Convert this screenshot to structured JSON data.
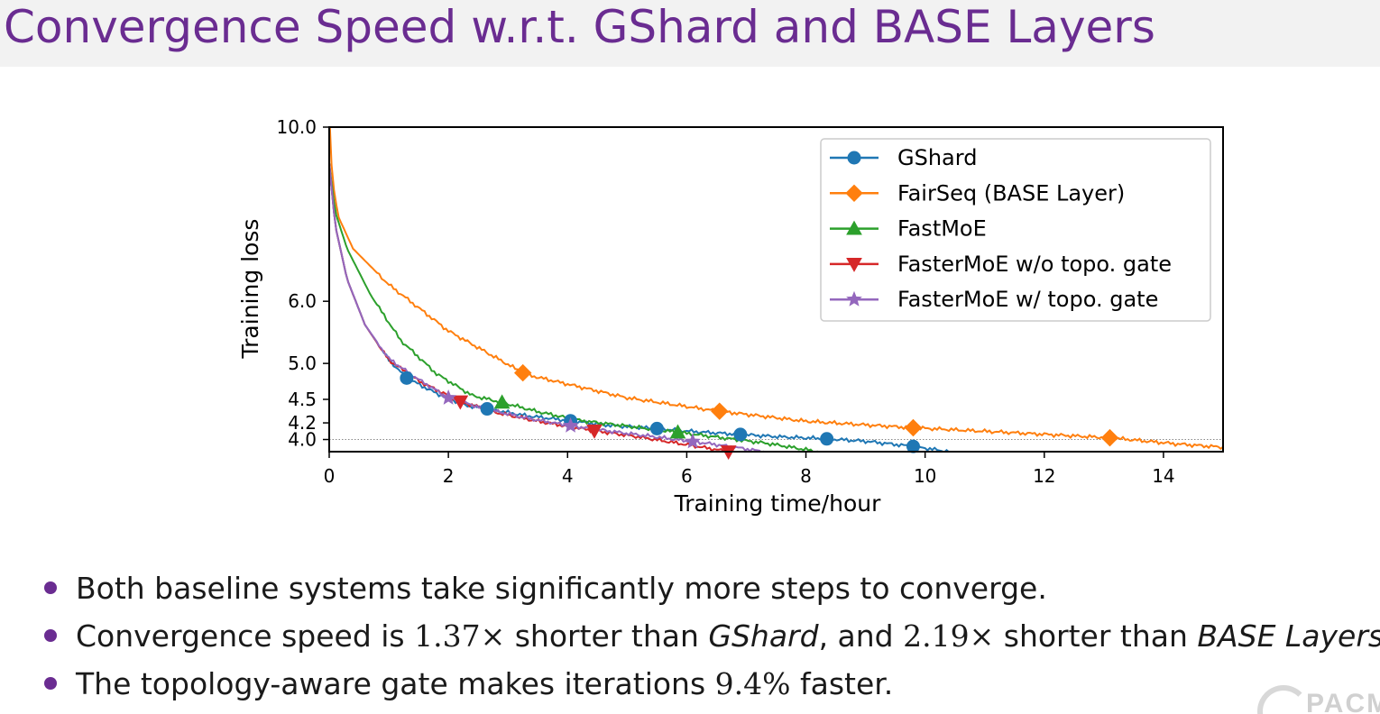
{
  "slide": {
    "title": "Convergence Speed w.r.t. GShard and BASE Layers",
    "logo_text": "PACM",
    "bullets": [
      {
        "parts": [
          {
            "text": "Both baseline systems take significantly more steps to converge."
          }
        ]
      },
      {
        "parts": [
          {
            "text": "Convergence speed is "
          },
          {
            "text": "1.37×",
            "style": "math"
          },
          {
            "text": " shorter than "
          },
          {
            "text": "GShard",
            "style": "em"
          },
          {
            "text": ", and "
          },
          {
            "text": "2.19×",
            "style": "math"
          },
          {
            "text": " shorter than "
          },
          {
            "text": "BASE Layers",
            "style": "em"
          },
          {
            "text": "."
          }
        ]
      },
      {
        "parts": [
          {
            "text": "The topology-aware gate makes iterations "
          },
          {
            "text": "9.4%",
            "style": "math"
          },
          {
            "text": " faster."
          }
        ]
      }
    ],
    "accent_color": "#6a2c91"
  },
  "chart_data": {
    "type": "line",
    "xlabel": "Training time/hour",
    "ylabel": "Training loss",
    "xlim": [
      0,
      15
    ],
    "ylim": [
      3.86,
      10.0
    ],
    "yscale": "log",
    "xticks": [
      0,
      2,
      4,
      6,
      8,
      10,
      12,
      14
    ],
    "xtick_labels": [
      "0",
      "2",
      "4",
      "6",
      "8",
      "10",
      "12",
      "14"
    ],
    "yticks": [
      10.0,
      6.0,
      5.0,
      4.5,
      4.2,
      4.0
    ],
    "ytick_labels": [
      "10.0",
      "6.0",
      "5.0",
      "4.5",
      "4.2",
      "4.0"
    ],
    "reference_line": {
      "y": 4.0,
      "style": "dotted"
    },
    "legend": {
      "position": "top-right"
    },
    "grid": false,
    "series": [
      {
        "name": "GShard",
        "color": "#1f77b4",
        "marker": "circle",
        "x": [
          0,
          0.1,
          0.3,
          0.6,
          1.0,
          1.3,
          1.8,
          2.3,
          2.7,
          3.3,
          4.0,
          4.7,
          5.5,
          6.2,
          6.9,
          7.6,
          8.3,
          9.0,
          9.8,
          10.4
        ],
        "y": [
          9.0,
          7.5,
          6.4,
          5.6,
          5.05,
          4.79,
          4.58,
          4.42,
          4.37,
          4.29,
          4.23,
          4.17,
          4.13,
          4.09,
          4.06,
          4.03,
          4.01,
          3.98,
          3.92,
          3.86
        ],
        "markers_x": [
          1.3,
          2.65,
          4.05,
          5.5,
          6.9,
          8.35,
          9.8
        ]
      },
      {
        "name": "FairSeq (BASE Layer)",
        "color": "#ff7f0e",
        "marker": "diamond",
        "x": [
          0,
          0.05,
          0.15,
          0.4,
          1.0,
          2.0,
          3.3,
          5.0,
          6.5,
          8.0,
          9.8,
          11.5,
          13.1,
          14.2,
          15.0
        ],
        "y": [
          10.5,
          8.6,
          7.7,
          7.0,
          6.3,
          5.5,
          4.84,
          4.52,
          4.35,
          4.22,
          4.14,
          4.08,
          4.02,
          3.95,
          3.91
        ],
        "markers_x": [
          3.25,
          6.55,
          9.8,
          13.1
        ]
      },
      {
        "name": "FastMoE",
        "color": "#2ca02c",
        "marker": "triangle-up",
        "x": [
          0,
          0.1,
          0.3,
          0.7,
          1.2,
          1.8,
          2.4,
          2.9,
          3.5,
          4.2,
          5.0,
          5.8,
          6.6,
          7.4,
          8.2
        ],
        "y": [
          9.0,
          7.8,
          7.0,
          6.1,
          5.35,
          4.85,
          4.55,
          4.46,
          4.34,
          4.23,
          4.16,
          4.09,
          4.02,
          3.95,
          3.86
        ],
        "markers_x": [
          2.9,
          5.85
        ]
      },
      {
        "name": "FasterMoE w/o topo. gate",
        "color": "#d62728",
        "marker": "triangle-down",
        "x": [
          0,
          0.1,
          0.3,
          0.6,
          1.0,
          1.5,
          2.2,
          2.8,
          3.5,
          4.4,
          5.2,
          6.0,
          6.7
        ],
        "y": [
          9.0,
          7.5,
          6.4,
          5.6,
          5.05,
          4.75,
          4.47,
          4.33,
          4.22,
          4.11,
          4.03,
          3.94,
          3.86
        ],
        "markers_x": [
          2.2,
          4.45,
          6.7
        ]
      },
      {
        "name": "FasterMoE w/ topo. gate",
        "color": "#9467bd",
        "marker": "star",
        "x": [
          0,
          0.1,
          0.3,
          0.6,
          1.0,
          1.5,
          2.0,
          2.6,
          3.3,
          4.0,
          4.8,
          5.6,
          6.4,
          7.3
        ],
        "y": [
          9.0,
          7.5,
          6.4,
          5.6,
          5.07,
          4.77,
          4.52,
          4.38,
          4.26,
          4.17,
          4.09,
          4.02,
          3.95,
          3.86
        ],
        "markers_x": [
          2.0,
          4.05,
          6.1
        ]
      }
    ]
  }
}
